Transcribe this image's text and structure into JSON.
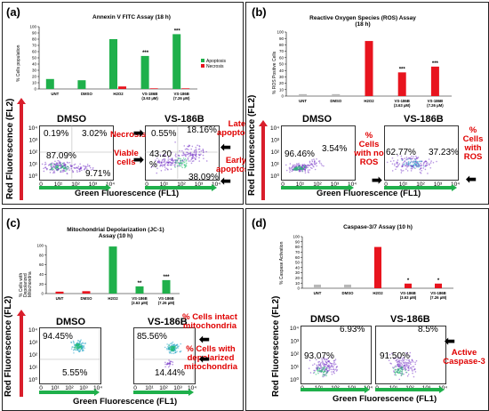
{
  "panels": {
    "a": {
      "label": "(a)",
      "chart_title": "Annexin V FITC Assay (18 h)",
      "ylabel": "% Cells population",
      "legend": [
        "Apoptosis",
        "Necrosis"
      ],
      "flow": {
        "ylabel": "Red Fluorescence (FL2)",
        "xlabel": "Green Fluorescence (FL1)",
        "left_title": "DMSO",
        "right_title": "VS-186B",
        "left_vals": [
          "0.19%",
          "3.02%",
          "87.09%",
          "9.71%"
        ],
        "right_vals": [
          "0.55%",
          "18.16%",
          "43.20",
          "%",
          "38.09%"
        ],
        "ann_necrosis": "Necrosis",
        "ann_late": "Late\napoptosis",
        "ann_viable": "Viable\ncells",
        "ann_early": "Early\napoptosis"
      }
    },
    "b": {
      "label": "(b)",
      "chart_title": "Reactive Oxygen Species (ROS) Assay\n(18 h)",
      "ylabel": "% ROS Positive Cells",
      "flow": {
        "ylabel": "Red Fluorescence (FL2)",
        "xlabel": "Green Fluorescence (FL1)",
        "left_title": "DMSO",
        "right_title": "VS-186B",
        "left_vals": [
          "96.46%",
          "3.54%"
        ],
        "right_vals": [
          "62.77%",
          "37.23%"
        ],
        "ann_no_ros": "%\nCells\nwith no\nROS",
        "ann_ros": "%\nCells\nwith\nROS"
      }
    },
    "c": {
      "label": "(c)",
      "chart_title": "Mitochondrial Depolarization (JC-1)\nAssay (10 h)",
      "ylabel": "% Cells with Depolarized Mitochondria",
      "flow": {
        "ylabel": "Red Fluorescence (FL2)",
        "xlabel": "Green Fluorescence (FL1)",
        "left_title": "DMSO",
        "right_title": "VS-186B",
        "left_vals": [
          "94.45%",
          "5.55%"
        ],
        "right_vals": [
          "85.56%",
          "14.44%"
        ],
        "ann_intact": "% Cells intact\nmitochondria",
        "ann_depol": "% Cells with\ndepolarized\nmitochondria"
      }
    },
    "d": {
      "label": "(d)",
      "chart_title": "Caspase-3/7 Assay (10 h)",
      "ylabel": "% Caspase Activation",
      "flow": {
        "ylabel": "Red Fluorescence (FL2)",
        "xlabel": "Green Fluorescence (FL1)",
        "left_title": "DMSO",
        "right_title": "VS-186B",
        "left_vals": [
          "6.93%",
          "93.07%"
        ],
        "right_vals": [
          "8.5%",
          "91.50%"
        ],
        "ann_casp": "Active\nCaspase-3"
      }
    }
  },
  "chart_data": [
    {
      "type": "bar",
      "panel": "a",
      "title": "Annexin V FITC Assay (18 h)",
      "ylabel": "% Cells population",
      "categories": [
        "UNT",
        "DMSO",
        "H2O2",
        "VS-186B\n(3.63 µM)",
        "VS-186B\n(7.26 µM)"
      ],
      "ylim": [
        0,
        100
      ],
      "ticks": [
        0,
        10,
        20,
        30,
        40,
        50,
        60,
        70,
        80,
        90,
        100
      ],
      "series": [
        {
          "name": "Apoptosis",
          "color": "#1fb04b",
          "values": [
            16,
            14,
            80,
            53,
            88
          ]
        },
        {
          "name": "Necrosis",
          "color": "#e8141e",
          "values": [
            0,
            0,
            4,
            1,
            1
          ]
        }
      ],
      "annotations": [
        "",
        "",
        "",
        "***",
        "***"
      ]
    },
    {
      "type": "bar",
      "panel": "b",
      "title": "Reactive Oxygen Species (ROS) Assay (18 h)",
      "ylabel": "% ROS Positive Cells",
      "categories": [
        "UNT",
        "DMSO",
        "H2O2",
        "VS-186B\n(3.63 µM)",
        "VS-186B\n(7.26 µM)"
      ],
      "ylim": [
        0,
        100
      ],
      "ticks": [
        0,
        10,
        20,
        30,
        40,
        50,
        60,
        70,
        80,
        90,
        100
      ],
      "series": [
        {
          "values": [
            3,
            3,
            86,
            37,
            46
          ],
          "colors": [
            "#b8b8b8",
            "#b8b8b8",
            "#e8141e",
            "#e8141e",
            "#e8141e"
          ]
        }
      ],
      "annotations": [
        "",
        "",
        "",
        "***",
        "***"
      ]
    },
    {
      "type": "bar",
      "panel": "c",
      "title": "Mitochondrial Depolarization (JC-1) Assay (10 h)",
      "ylabel": "% Cells with Depolarized Mitochondria",
      "categories": [
        "UNT",
        "DMSO",
        "H2O2",
        "VS-186B\n(3.63 µM)",
        "VS-186B\n(7.26 µM)"
      ],
      "ylim": [
        0,
        100
      ],
      "ticks": [
        0,
        20,
        40,
        60,
        80,
        100
      ],
      "series": [
        {
          "values": [
            4,
            5,
            98,
            15,
            28
          ],
          "colors": [
            "#e8141e",
            "#e8141e",
            "#1fb04b",
            "#1fb04b",
            "#1fb04b"
          ]
        }
      ],
      "annotations": [
        "",
        "",
        "",
        "**",
        "***"
      ]
    },
    {
      "type": "bar",
      "panel": "d",
      "title": "Caspase-3/7 Assay (10 h)",
      "ylabel": "% Caspase Activation",
      "categories": [
        "UNT",
        "DMSO",
        "H2O2",
        "VS-186B\n(3.63 µM)",
        "VS-186B\n(7.26 µM)"
      ],
      "ylim": [
        0,
        100
      ],
      "ticks": [
        0,
        10,
        20,
        30,
        40,
        50,
        60,
        70,
        80,
        90,
        100
      ],
      "series": [
        {
          "values": [
            7,
            7,
            80,
            9,
            9
          ],
          "colors": [
            "#b8b8b8",
            "#b8b8b8",
            "#e8141e",
            "#e8141e",
            "#e8141e"
          ]
        }
      ],
      "annotations": [
        "",
        "",
        "",
        "*",
        "*"
      ]
    }
  ],
  "flow_tick_labels": {
    "y": [
      "10⁴",
      "10³",
      "10²",
      "10¹",
      "10⁰"
    ],
    "x": [
      "0",
      "10¹",
      "10²",
      "10³",
      "10⁴"
    ]
  }
}
